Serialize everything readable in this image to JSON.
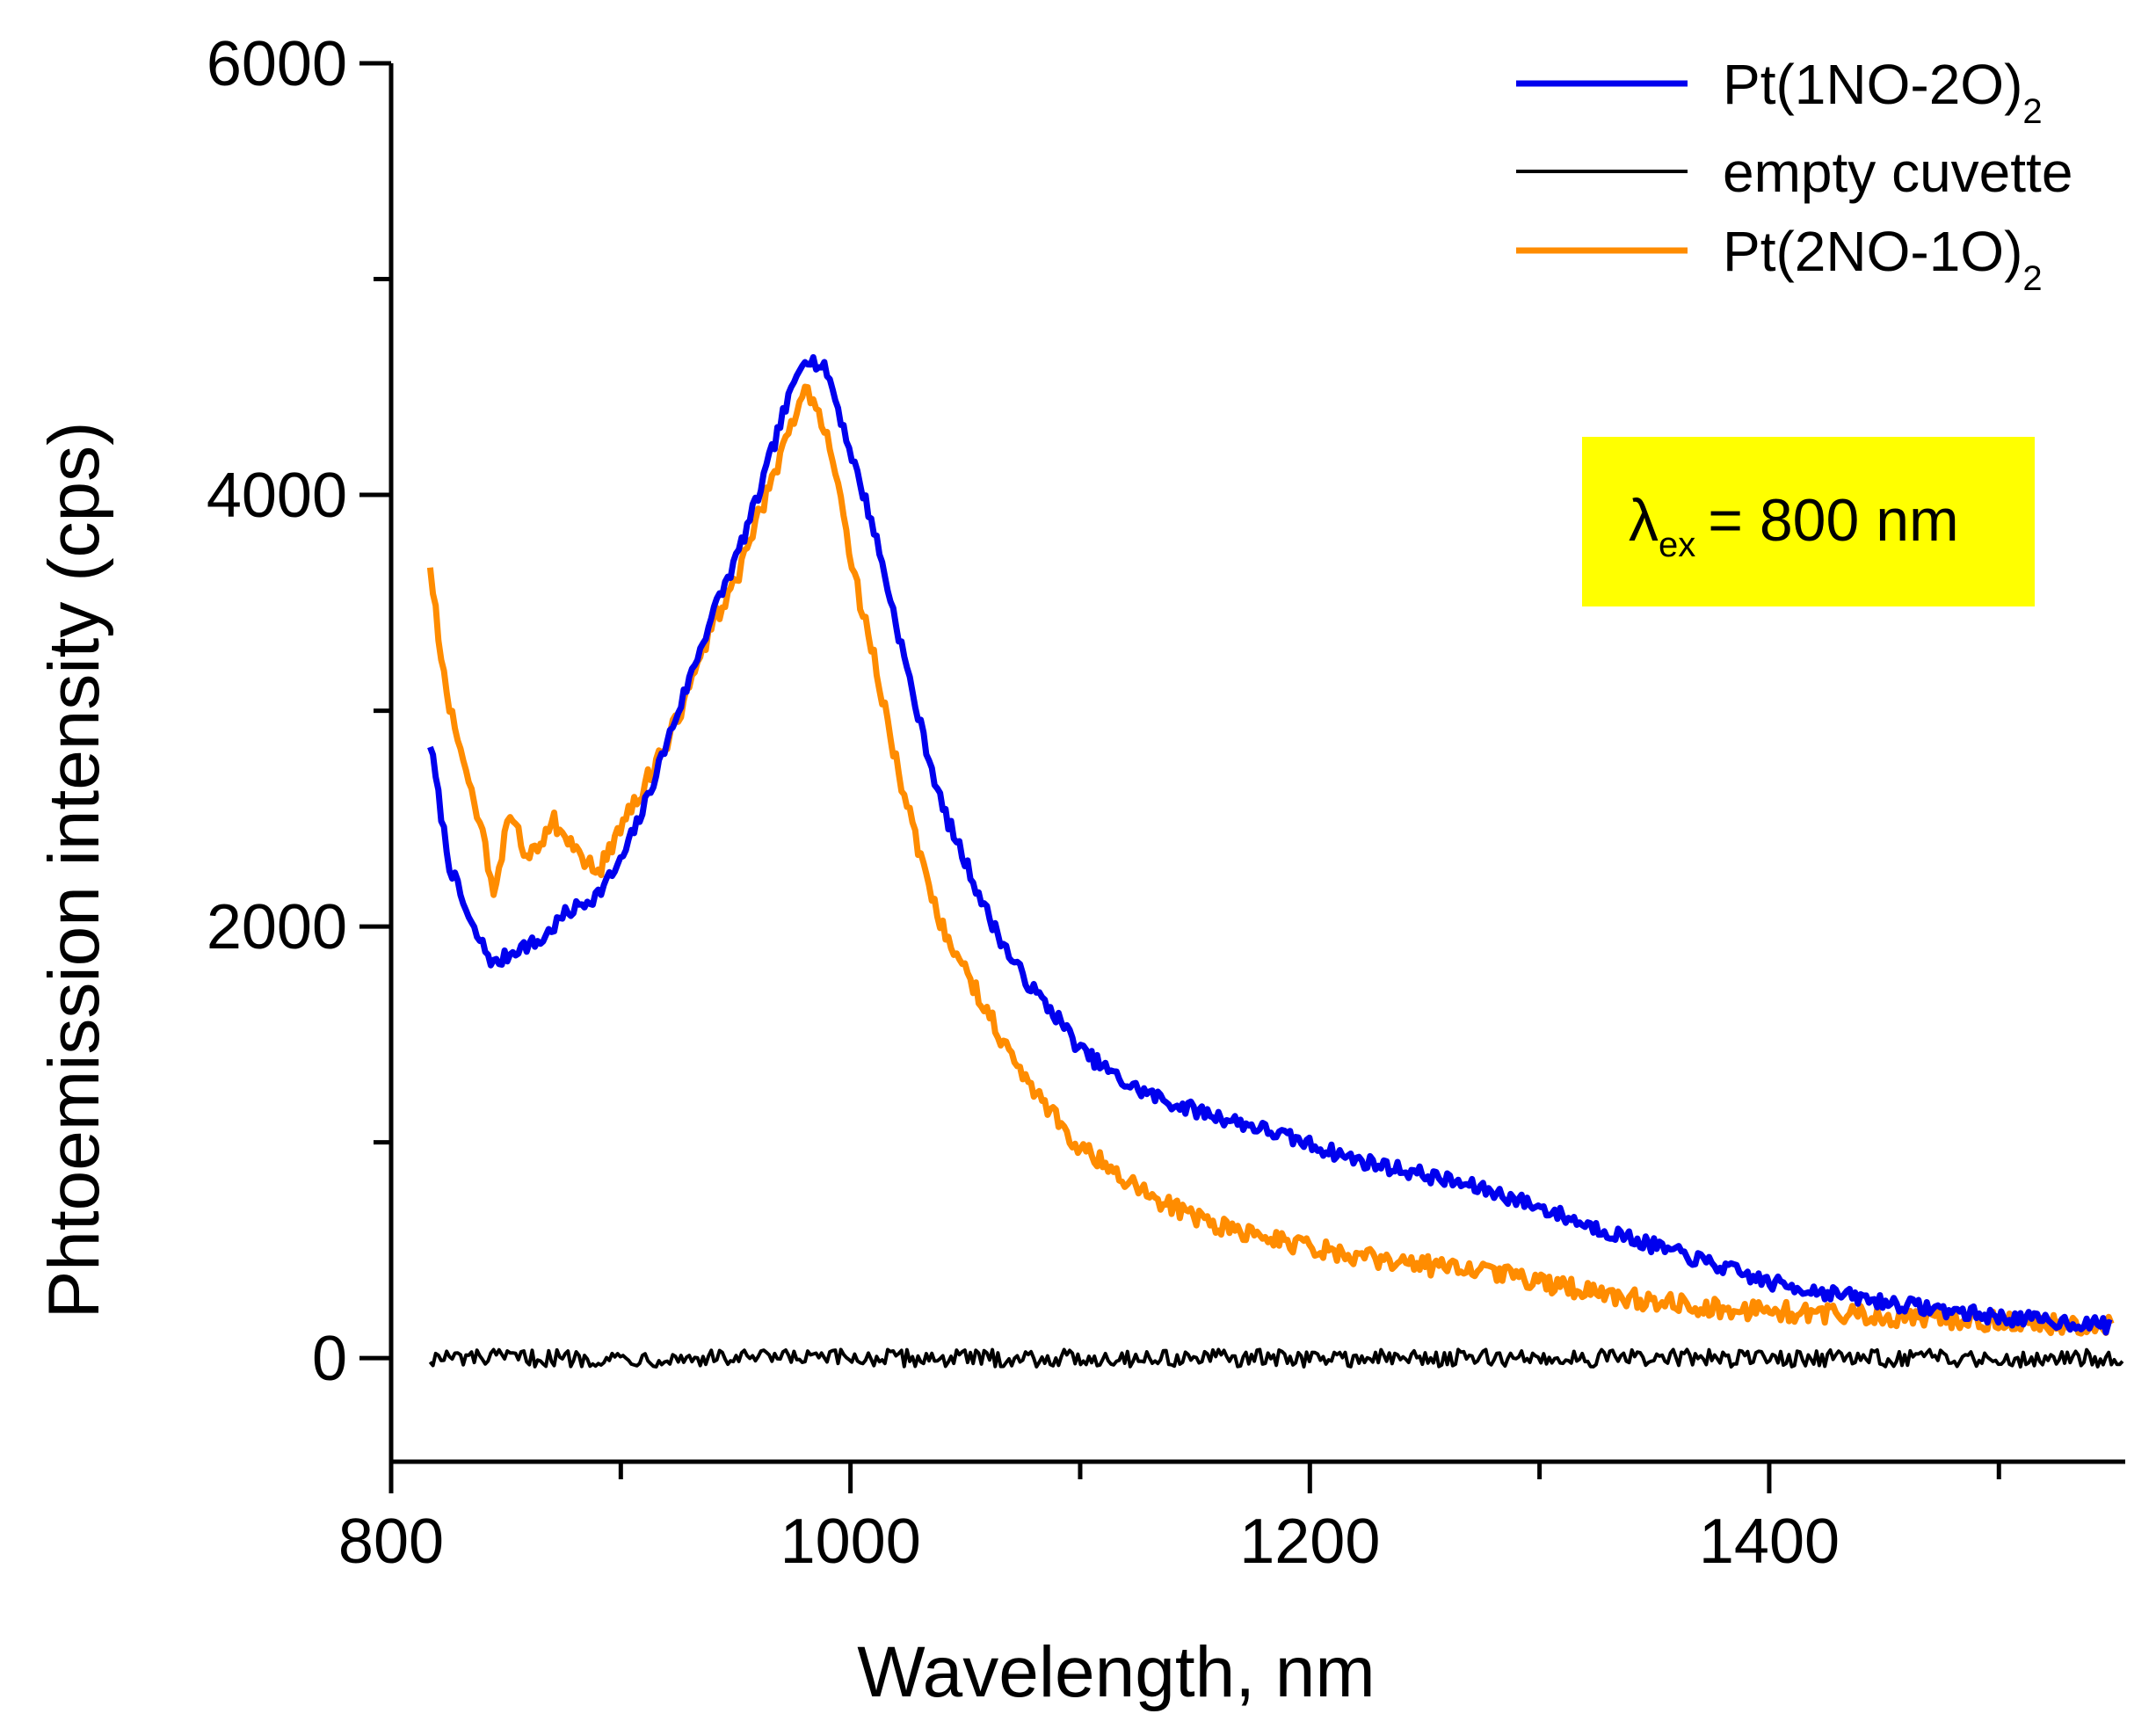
{
  "chart_data": {
    "type": "line",
    "title": "",
    "xlabel": "Wavelength, nm",
    "ylabel": "Phtoemission intensity (cps)",
    "xlim": [
      800,
      1555
    ],
    "ylim": [
      -480,
      6000
    ],
    "x_ticks": [
      800,
      1000,
      1200,
      1400
    ],
    "x_minor_ticks": [
      900,
      1100,
      1300,
      1500
    ],
    "y_ticks": [
      0,
      2000,
      4000,
      6000
    ],
    "y_minor_ticks": [
      1000,
      3000,
      5000
    ],
    "x_tick_labels": [
      "800",
      "1000",
      "1200",
      "1400"
    ],
    "y_tick_labels": [
      "0",
      "2000",
      "4000",
      "6000"
    ],
    "grid": false,
    "legend_position": "top-right",
    "annotation": {
      "symbol": "λ",
      "subscript": "ex",
      "text": "= 800 nm",
      "background": "#ffff00"
    },
    "series": [
      {
        "name": "Pt(1NO-2O)",
        "name_subscript": "2",
        "color": "#0000ee",
        "noise": 35,
        "x": [
          817,
          825,
          835,
          845,
          855,
          865,
          875,
          890,
          900,
          910,
          920,
          930,
          940,
          950,
          960,
          970,
          980,
          990,
          1000,
          1010,
          1020,
          1030,
          1040,
          1050,
          1060,
          1070,
          1080,
          1090,
          1100,
          1120,
          1140,
          1160,
          1180,
          1200,
          1220,
          1250,
          1280,
          1300,
          1320,
          1350,
          1380,
          1400,
          1450,
          1500,
          1550
        ],
        "values": [
          2850,
          2300,
          2000,
          1820,
          1900,
          1930,
          2050,
          2150,
          2300,
          2550,
          2850,
          3150,
          3450,
          3700,
          4000,
          4350,
          4650,
          4570,
          4200,
          3850,
          3400,
          2950,
          2550,
          2300,
          2050,
          1850,
          1700,
          1580,
          1430,
          1270,
          1180,
          1120,
          1060,
          990,
          920,
          850,
          770,
          700,
          620,
          520,
          420,
          350,
          260,
          190,
          150
        ]
      },
      {
        "name": "empty cuvette",
        "name_subscript": "",
        "color": "#000000",
        "noise": 40,
        "x": [
          817,
          900,
          1000,
          1100,
          1200,
          1300,
          1400,
          1500,
          1555
        ],
        "values": [
          0,
          0,
          0,
          0,
          0,
          0,
          0,
          0,
          0
        ]
      },
      {
        "name": "Pt(2NO-1O)",
        "name_subscript": "2",
        "color": "#ff8c00",
        "noise": 45,
        "x": [
          817,
          822,
          830,
          840,
          845,
          852,
          860,
          870,
          880,
          890,
          900,
          910,
          920,
          930,
          940,
          950,
          960,
          970,
          980,
          990,
          1000,
          1010,
          1020,
          1030,
          1040,
          1050,
          1060,
          1070,
          1080,
          1090,
          1100,
          1110,
          1120,
          1140,
          1160,
          1180,
          1200,
          1220,
          1250,
          1280,
          1300,
          1320,
          1350,
          1380,
          1400,
          1450,
          1500,
          1550
        ],
        "values": [
          3680,
          3200,
          2800,
          2400,
          2150,
          2550,
          2300,
          2500,
          2350,
          2250,
          2450,
          2650,
          2850,
          3100,
          3400,
          3600,
          3900,
          4200,
          4500,
          4300,
          3700,
          3250,
          2750,
          2350,
          2000,
          1800,
          1600,
          1400,
          1250,
          1100,
          980,
          900,
          820,
          700,
          620,
          560,
          510,
          470,
          430,
          400,
          350,
          310,
          260,
          230,
          220,
          190,
          170,
          150
        ]
      }
    ]
  }
}
